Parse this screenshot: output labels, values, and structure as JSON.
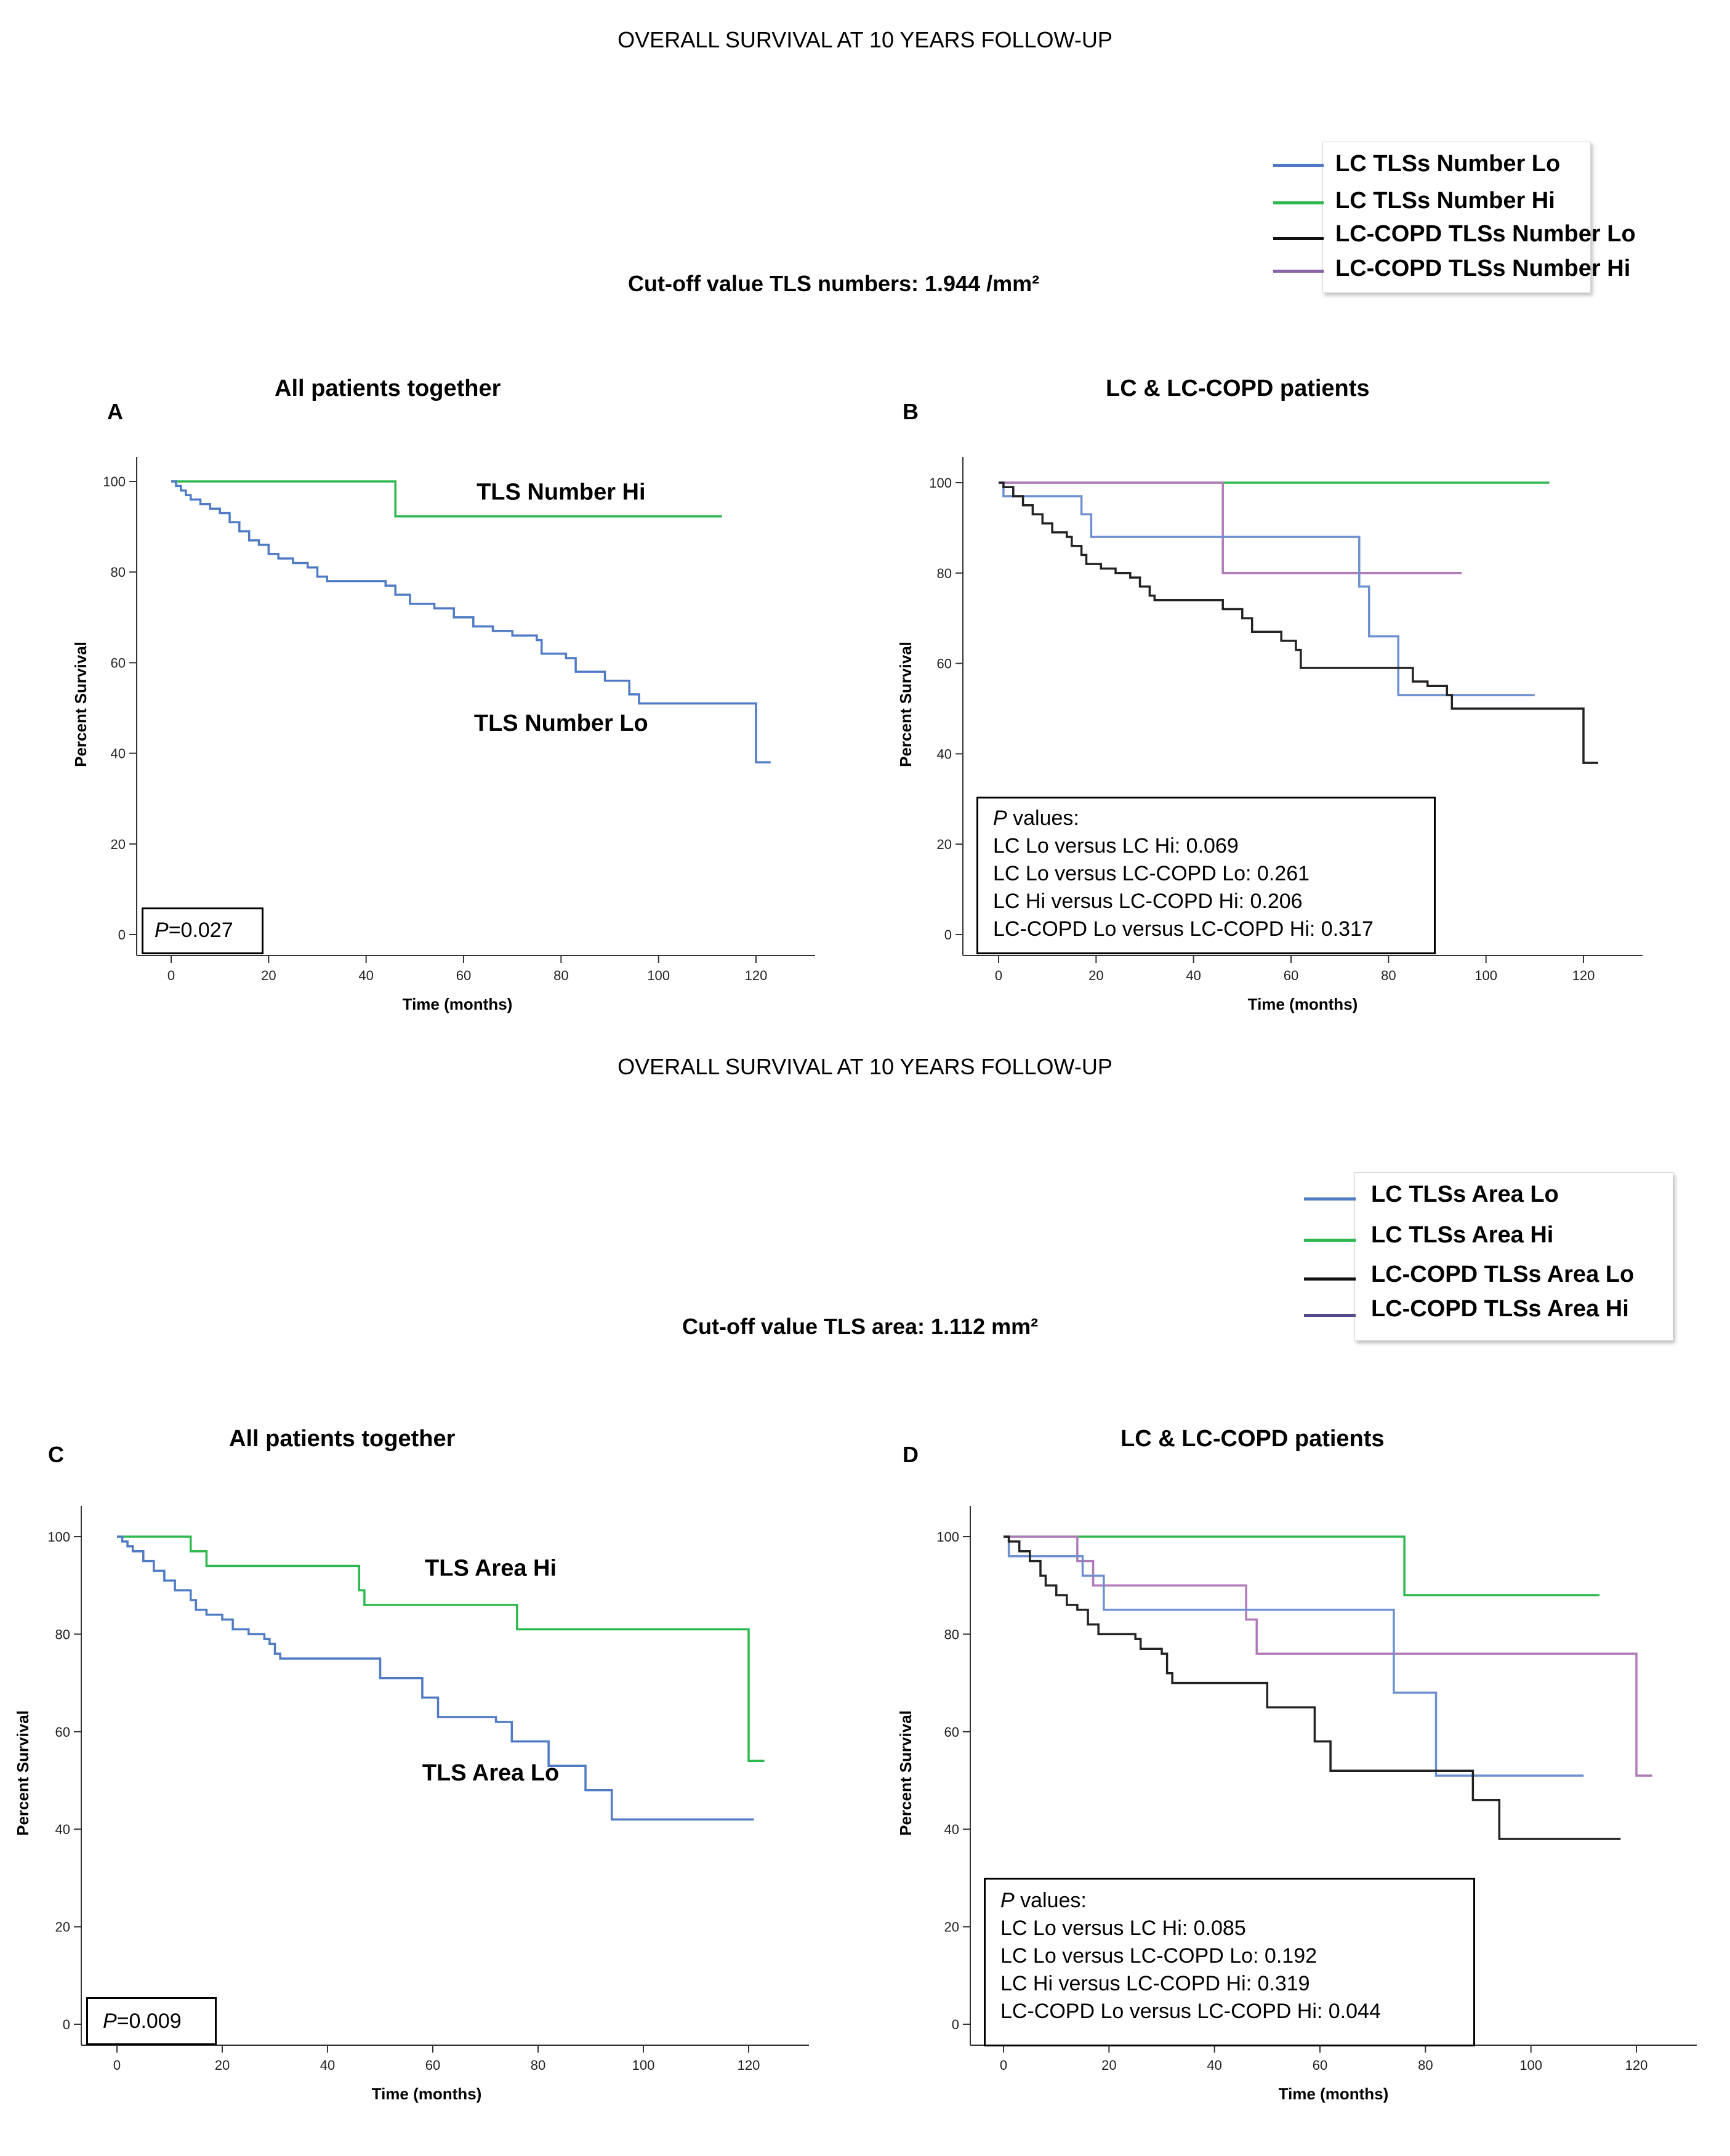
{
  "figure": {
    "top_title": "OVERALL SURVIVAL AT 10 YEARS FOLLOW-UP",
    "bottom_title": "OVERALL SURVIVAL AT 10 YEARS FOLLOW-UP",
    "cutoff_top": "Cut-off  value TLS numbers: 1.944 /mm²",
    "cutoff_bottom": "Cut-off  value TLS area: 1.112 mm²"
  },
  "legend_top": [
    {
      "label": "LC TLSs Number  Lo",
      "color": "#4f7ac4"
    },
    {
      "label": "LC TLSs Number Hi",
      "color": "#2eb84f"
    },
    {
      "label": "LC-COPD TLSs Number Lo",
      "color": "#111111"
    },
    {
      "label": "LC-COPD TLSs Number Hi",
      "color": "#8a62a8"
    }
  ],
  "legend_bottom": [
    {
      "label": "LC TLSs Area Lo",
      "color": "#4f7ac4"
    },
    {
      "label": "LC TLSs Area Hi",
      "color": "#2eb84f"
    },
    {
      "label": "LC-COPD TLSs Area Lo",
      "color": "#111111"
    },
    {
      "label": "LC-COPD TLSs Area Hi",
      "color": "#574a8a"
    }
  ],
  "pbox_A": {
    "text": "=0.027",
    "p": "P"
  },
  "pbox_C": {
    "text": "=0.009",
    "p": "P"
  },
  "pbox_B": {
    "p": "P",
    "header": " values:",
    "lines": [
      "LC Lo versus  LC Hi: 0.069",
      "LC Lo versus  LC-COPD Lo: 0.261",
      "LC Hi versus   LC-COPD  Hi: 0.206",
      "LC-COPD  Lo versus  LC-COPD Hi: 0.317"
    ]
  },
  "pbox_D": {
    "p": "P",
    "header": " values:",
    "lines": [
      "LC Lo versus  LC Hi: 0.085",
      "LC Lo versus  LC-COPD  Lo: 0.192",
      "LC Hi versus   LC-COPD  Hi: 0.319",
      "LC-COPD  Lo versus  LC-COPD  Hi: 0.044"
    ]
  },
  "chart_data": [
    {
      "id": "A",
      "panel_letter": "A",
      "type": "line",
      "title": "All patients together",
      "xlabel": "Time (months)",
      "ylabel": "Percent Survival",
      "xlim": [
        -5,
        132
      ],
      "ylim": [
        -7,
        107
      ],
      "xticks": [
        0,
        20,
        40,
        60,
        80,
        100,
        120
      ],
      "yticks": [
        0,
        20,
        40,
        60,
        80,
        100
      ],
      "annotations": [
        {
          "text": "TLS Number Hi",
          "x": 80,
          "y": 96
        },
        {
          "text": "TLS Number Lo",
          "x": 80,
          "y": 45
        }
      ],
      "series": [
        {
          "name": "TLS Number Hi",
          "color": "#2eb84f",
          "points": [
            [
              0,
              100
            ],
            [
              46,
              100
            ],
            [
              46,
              92.3
            ],
            [
              113,
              92.3
            ]
          ]
        },
        {
          "name": "TLS Number Lo",
          "color": "#4f7ac4",
          "points": [
            [
              0,
              100
            ],
            [
              1,
              99
            ],
            [
              2,
              98
            ],
            [
              3,
              97
            ],
            [
              4,
              96
            ],
            [
              6,
              95
            ],
            [
              8,
              94
            ],
            [
              10,
              93
            ],
            [
              12,
              91
            ],
            [
              14,
              89
            ],
            [
              16,
              87
            ],
            [
              18,
              86
            ],
            [
              20,
              84
            ],
            [
              22,
              83
            ],
            [
              25,
              82
            ],
            [
              28,
              81
            ],
            [
              30,
              79
            ],
            [
              32,
              78
            ],
            [
              40,
              78
            ],
            [
              44,
              77
            ],
            [
              46,
              75
            ],
            [
              49,
              73
            ],
            [
              54,
              72
            ],
            [
              58,
              70
            ],
            [
              62,
              68
            ],
            [
              66,
              67
            ],
            [
              70,
              66
            ],
            [
              75,
              65
            ],
            [
              76,
              62
            ],
            [
              81,
              61
            ],
            [
              83,
              58
            ],
            [
              89,
              56
            ],
            [
              94,
              53
            ],
            [
              96,
              51
            ],
            [
              120,
              51
            ],
            [
              120,
              38
            ],
            [
              123,
              38
            ]
          ]
        }
      ]
    },
    {
      "id": "B",
      "panel_letter": "B",
      "type": "line",
      "title": "LC & LC-COPD patients",
      "xlabel": "Time (months)",
      "ylabel": "Percent Survival",
      "xlim": [
        -5,
        132
      ],
      "ylim": [
        -7,
        107
      ],
      "xticks": [
        0,
        20,
        40,
        60,
        80,
        100,
        120
      ],
      "yticks": [
        0,
        20,
        40,
        60,
        80,
        100
      ],
      "annotations": [],
      "series": [
        {
          "name": "LC TLSs Number Hi",
          "color": "#2eb84f",
          "points": [
            [
              0,
              100
            ],
            [
              113,
              100
            ]
          ]
        },
        {
          "name": "LC-COPD TLSs Number Hi",
          "color": "#b07ab8",
          "points": [
            [
              0,
              100
            ],
            [
              46,
              100
            ],
            [
              46,
              80
            ],
            [
              95,
              80
            ]
          ]
        },
        {
          "name": "LC TLSs Number Lo",
          "color": "#6e8fd0",
          "points": [
            [
              0,
              100
            ],
            [
              1,
              97
            ],
            [
              17,
              97
            ],
            [
              17,
              93
            ],
            [
              19,
              93
            ],
            [
              19,
              88
            ],
            [
              74,
              88
            ],
            [
              74,
              77
            ],
            [
              76,
              77
            ],
            [
              76,
              66
            ],
            [
              82,
              66
            ],
            [
              82,
              53
            ],
            [
              110,
              53
            ]
          ]
        },
        {
          "name": "LC-COPD TLSs Number Lo",
          "color": "#222222",
          "points": [
            [
              0,
              100
            ],
            [
              1,
              99
            ],
            [
              3,
              97
            ],
            [
              5,
              95
            ],
            [
              7,
              93
            ],
            [
              9,
              91
            ],
            [
              11,
              89
            ],
            [
              14,
              88
            ],
            [
              15,
              86
            ],
            [
              17,
              84
            ],
            [
              18,
              82
            ],
            [
              21,
              81
            ],
            [
              24,
              80
            ],
            [
              27,
              79
            ],
            [
              29,
              77
            ],
            [
              31,
              75
            ],
            [
              32,
              74
            ],
            [
              44,
              74
            ],
            [
              46,
              72
            ],
            [
              50,
              70
            ],
            [
              52,
              67
            ],
            [
              58,
              65
            ],
            [
              61,
              63
            ],
            [
              62,
              59
            ],
            [
              80,
              59
            ],
            [
              85,
              56
            ],
            [
              88,
              55
            ],
            [
              92,
              53
            ],
            [
              93,
              50
            ],
            [
              120,
              50
            ],
            [
              120,
              38
            ],
            [
              123,
              38
            ]
          ]
        }
      ]
    },
    {
      "id": "C",
      "panel_letter": "C",
      "type": "line",
      "title": "All patients together",
      "xlabel": "Time (months)",
      "ylabel": "Percent Survival",
      "xlim": [
        -5,
        132
      ],
      "ylim": [
        -7,
        107
      ],
      "xticks": [
        0,
        20,
        40,
        60,
        80,
        100,
        120
      ],
      "yticks": [
        0,
        20,
        40,
        60,
        80,
        100
      ],
      "annotations": [
        {
          "text": "TLS Area Hi",
          "x": 71,
          "y": 92
        },
        {
          "text": "TLS Area Lo",
          "x": 71,
          "y": 50
        }
      ],
      "series": [
        {
          "name": "TLS Area Hi",
          "color": "#2eb84f",
          "points": [
            [
              0,
              100
            ],
            [
              14,
              100
            ],
            [
              14,
              97
            ],
            [
              17,
              97
            ],
            [
              17,
              94
            ],
            [
              46,
              94
            ],
            [
              46,
              89
            ],
            [
              47,
              89
            ],
            [
              47,
              86
            ],
            [
              76,
              86
            ],
            [
              76,
              81
            ],
            [
              120,
              81
            ],
            [
              120,
              54
            ],
            [
              123,
              54
            ]
          ]
        },
        {
          "name": "TLS Area Lo",
          "color": "#4f7ac4",
          "points": [
            [
              0,
              100
            ],
            [
              1,
              99
            ],
            [
              2,
              98
            ],
            [
              3,
              97
            ],
            [
              5,
              95
            ],
            [
              7,
              93
            ],
            [
              9,
              91
            ],
            [
              11,
              89
            ],
            [
              14,
              87
            ],
            [
              15,
              85
            ],
            [
              17,
              84
            ],
            [
              20,
              83
            ],
            [
              22,
              81
            ],
            [
              25,
              80
            ],
            [
              28,
              79
            ],
            [
              29,
              78
            ],
            [
              30,
              76
            ],
            [
              31,
              75
            ],
            [
              50,
              75
            ],
            [
              50,
              71
            ],
            [
              57,
              71
            ],
            [
              58,
              67
            ],
            [
              61,
              63
            ],
            [
              66,
              63
            ],
            [
              72,
              62
            ],
            [
              75,
              58
            ],
            [
              82,
              58
            ],
            [
              82,
              53
            ],
            [
              89,
              53
            ],
            [
              89,
              48
            ],
            [
              94,
              48
            ],
            [
              94,
              42
            ],
            [
              121,
              42
            ]
          ]
        }
      ]
    },
    {
      "id": "D",
      "panel_letter": "D",
      "type": "line",
      "title": "LC & LC-COPD patients",
      "xlabel": "Time (months)",
      "ylabel": "Percent Survival",
      "xlim": [
        -5,
        132
      ],
      "ylim": [
        -7,
        107
      ],
      "xticks": [
        0,
        20,
        40,
        60,
        80,
        100,
        120
      ],
      "yticks": [
        0,
        20,
        40,
        60,
        80,
        100
      ],
      "annotations": [],
      "series": [
        {
          "name": "LC TLSs Area Hi",
          "color": "#2eb84f",
          "points": [
            [
              0,
              100
            ],
            [
              76,
              100
            ],
            [
              76,
              88
            ],
            [
              113,
              88
            ]
          ]
        },
        {
          "name": "LC-COPD TLSs Area Hi",
          "color": "#b07ab8",
          "points": [
            [
              0,
              100
            ],
            [
              14,
              100
            ],
            [
              14,
              95
            ],
            [
              17,
              95
            ],
            [
              17,
              90
            ],
            [
              46,
              90
            ],
            [
              46,
              83
            ],
            [
              48,
              83
            ],
            [
              48,
              76
            ],
            [
              120,
              76
            ],
            [
              120,
              51
            ],
            [
              123,
              51
            ]
          ]
        },
        {
          "name": "LC TLSs Area Lo",
          "color": "#6e8fd0",
          "points": [
            [
              0,
              100
            ],
            [
              1,
              96
            ],
            [
              15,
              96
            ],
            [
              15,
              92
            ],
            [
              19,
              92
            ],
            [
              19,
              85
            ],
            [
              74,
              85
            ],
            [
              74,
              68
            ],
            [
              82,
              68
            ],
            [
              82,
              51
            ],
            [
              110,
              51
            ]
          ]
        },
        {
          "name": "LC-COPD TLSs Area Lo",
          "color": "#222222",
          "points": [
            [
              0,
              100
            ],
            [
              1,
              99
            ],
            [
              3,
              97
            ],
            [
              5,
              95
            ],
            [
              7,
              92
            ],
            [
              8,
              90
            ],
            [
              10,
              88
            ],
            [
              12,
              86
            ],
            [
              14,
              85
            ],
            [
              16,
              82
            ],
            [
              18,
              80
            ],
            [
              22,
              80
            ],
            [
              25,
              79
            ],
            [
              26,
              77
            ],
            [
              30,
              76
            ],
            [
              31,
              72
            ],
            [
              32,
              70
            ],
            [
              50,
              70
            ],
            [
              50,
              65
            ],
            [
              58,
              65
            ],
            [
              59,
              58
            ],
            [
              61,
              58
            ],
            [
              62,
              52
            ],
            [
              89,
              52
            ],
            [
              89,
              46
            ],
            [
              92,
              46
            ],
            [
              94,
              38
            ],
            [
              117,
              38
            ]
          ]
        }
      ]
    }
  ]
}
